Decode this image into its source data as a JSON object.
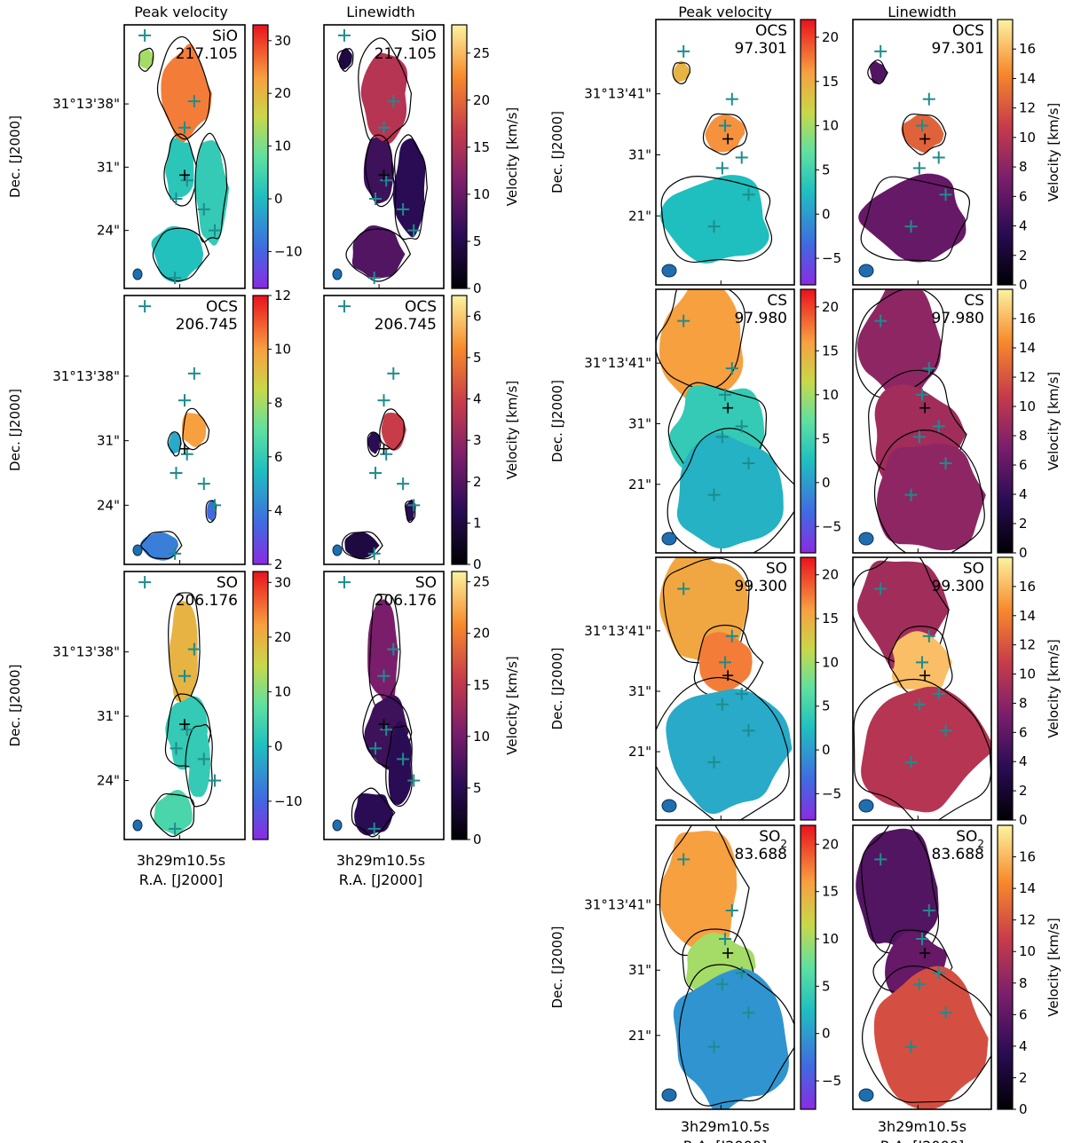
{
  "figure": {
    "column_headers": {
      "left_peak": "Peak velocity",
      "left_width": "Linewidth",
      "right_peak": "Peak velocity",
      "right_width": "Linewidth"
    },
    "ylabel": "Dec. [J2000]",
    "xlabel": "R.A. [J2000]",
    "xtick": "3h29m10.5s",
    "colorbar_label": "Velocity [km/s]",
    "colors": {
      "marker": "#1e8c8c",
      "contour": "#000000",
      "beam": "#1f6fb0"
    }
  },
  "chart_data": [
    {
      "type": "heatmap",
      "group": "left",
      "row": 0,
      "kind": "peak",
      "molecule": "SiO",
      "freq": "217.105",
      "yticks": [
        "31°13'38\"",
        "31\"",
        "24\""
      ],
      "cbar_ticks": [
        "30",
        "20",
        "10",
        "0",
        "−10"
      ],
      "cbar_range": [
        -17,
        33
      ],
      "colormap": "rainbow"
    },
    {
      "type": "heatmap",
      "group": "left",
      "row": 0,
      "kind": "width",
      "molecule": "SiO",
      "freq": "217.105",
      "cbar_ticks": [
        "25",
        "20",
        "15",
        "10",
        "5",
        "0"
      ],
      "cbar_range": [
        0,
        28
      ],
      "colormap": "inferno"
    },
    {
      "type": "heatmap",
      "group": "left",
      "row": 1,
      "kind": "peak",
      "molecule": "OCS",
      "freq": "206.745",
      "yticks": [
        "31°13'38\"",
        "31\"",
        "24\""
      ],
      "cbar_ticks": [
        "12",
        "10",
        "8",
        "6",
        "4",
        "2"
      ],
      "cbar_range": [
        2,
        12
      ],
      "colormap": "rainbow"
    },
    {
      "type": "heatmap",
      "group": "left",
      "row": 1,
      "kind": "width",
      "molecule": "OCS",
      "freq": "206.745",
      "cbar_ticks": [
        "6",
        "5",
        "4",
        "3",
        "2",
        "1",
        "0"
      ],
      "cbar_range": [
        0,
        6.5
      ],
      "colormap": "inferno"
    },
    {
      "type": "heatmap",
      "group": "left",
      "row": 2,
      "kind": "peak",
      "molecule": "SO",
      "freq": "206.176",
      "yticks": [
        "31°13'38\"",
        "31\"",
        "24\""
      ],
      "cbar_ticks": [
        "30",
        "20",
        "10",
        "0",
        "−10"
      ],
      "cbar_range": [
        -17,
        32
      ],
      "colormap": "rainbow"
    },
    {
      "type": "heatmap",
      "group": "left",
      "row": 2,
      "kind": "width",
      "molecule": "SO",
      "freq": "206.176",
      "cbar_ticks": [
        "25",
        "20",
        "15",
        "10",
        "5",
        "0"
      ],
      "cbar_range": [
        0,
        26
      ],
      "colormap": "inferno"
    },
    {
      "type": "heatmap",
      "group": "right",
      "row": 0,
      "kind": "peak",
      "molecule": "OCS",
      "freq": "97.301",
      "yticks": [
        "31°13'41\"",
        "31\"",
        "21\""
      ],
      "cbar_ticks": [
        "20",
        "15",
        "10",
        "5",
        "0",
        "−5"
      ],
      "cbar_range": [
        -8,
        22
      ],
      "colormap": "rainbow"
    },
    {
      "type": "heatmap",
      "group": "right",
      "row": 0,
      "kind": "width",
      "molecule": "OCS",
      "freq": "97.301",
      "cbar_ticks": [
        "16",
        "14",
        "12",
        "10",
        "8",
        "6",
        "4",
        "2",
        "0"
      ],
      "cbar_range": [
        0,
        18
      ],
      "colormap": "inferno"
    },
    {
      "type": "heatmap",
      "group": "right",
      "row": 1,
      "kind": "peak",
      "molecule": "CS",
      "freq": "97.980",
      "yticks": [
        "31°13'41\"",
        "31\"",
        "21\""
      ],
      "cbar_ticks": [
        "20",
        "15",
        "10",
        "5",
        "0",
        "−5"
      ],
      "cbar_range": [
        -8,
        22
      ],
      "colormap": "rainbow"
    },
    {
      "type": "heatmap",
      "group": "right",
      "row": 1,
      "kind": "width",
      "molecule": "CS",
      "freq": "97.980",
      "cbar_ticks": [
        "16",
        "14",
        "12",
        "10",
        "8",
        "6",
        "4",
        "2",
        "0"
      ],
      "cbar_range": [
        0,
        18
      ],
      "colormap": "inferno"
    },
    {
      "type": "heatmap",
      "group": "right",
      "row": 2,
      "kind": "peak",
      "molecule": "SO",
      "freq": "99.300",
      "yticks": [
        "31°13'41\"",
        "31\"",
        "21\""
      ],
      "cbar_ticks": [
        "20",
        "15",
        "10",
        "5",
        "0",
        "−5"
      ],
      "cbar_range": [
        -8,
        22
      ],
      "colormap": "rainbow"
    },
    {
      "type": "heatmap",
      "group": "right",
      "row": 2,
      "kind": "width",
      "molecule": "SO",
      "freq": "99.300",
      "cbar_ticks": [
        "16",
        "14",
        "12",
        "10",
        "8",
        "6",
        "4",
        "2",
        "0"
      ],
      "cbar_range": [
        0,
        18
      ],
      "colormap": "inferno"
    },
    {
      "type": "heatmap",
      "group": "right",
      "row": 3,
      "kind": "peak",
      "molecule": "SO",
      "subscript": "2",
      "freq": "83.688",
      "yticks": [
        "31°13'41\"",
        "31\"",
        "21\""
      ],
      "cbar_ticks": [
        "20",
        "15",
        "10",
        "5",
        "0",
        "−5"
      ],
      "cbar_range": [
        -8,
        22
      ],
      "colormap": "rainbow"
    },
    {
      "type": "heatmap",
      "group": "right",
      "row": 3,
      "kind": "width",
      "molecule": "SO",
      "subscript": "2",
      "freq": "83.688",
      "cbar_ticks": [
        "16",
        "14",
        "12",
        "10",
        "8",
        "6",
        "4",
        "2",
        "0"
      ],
      "cbar_range": [
        0,
        18
      ],
      "colormap": "inferno"
    }
  ]
}
